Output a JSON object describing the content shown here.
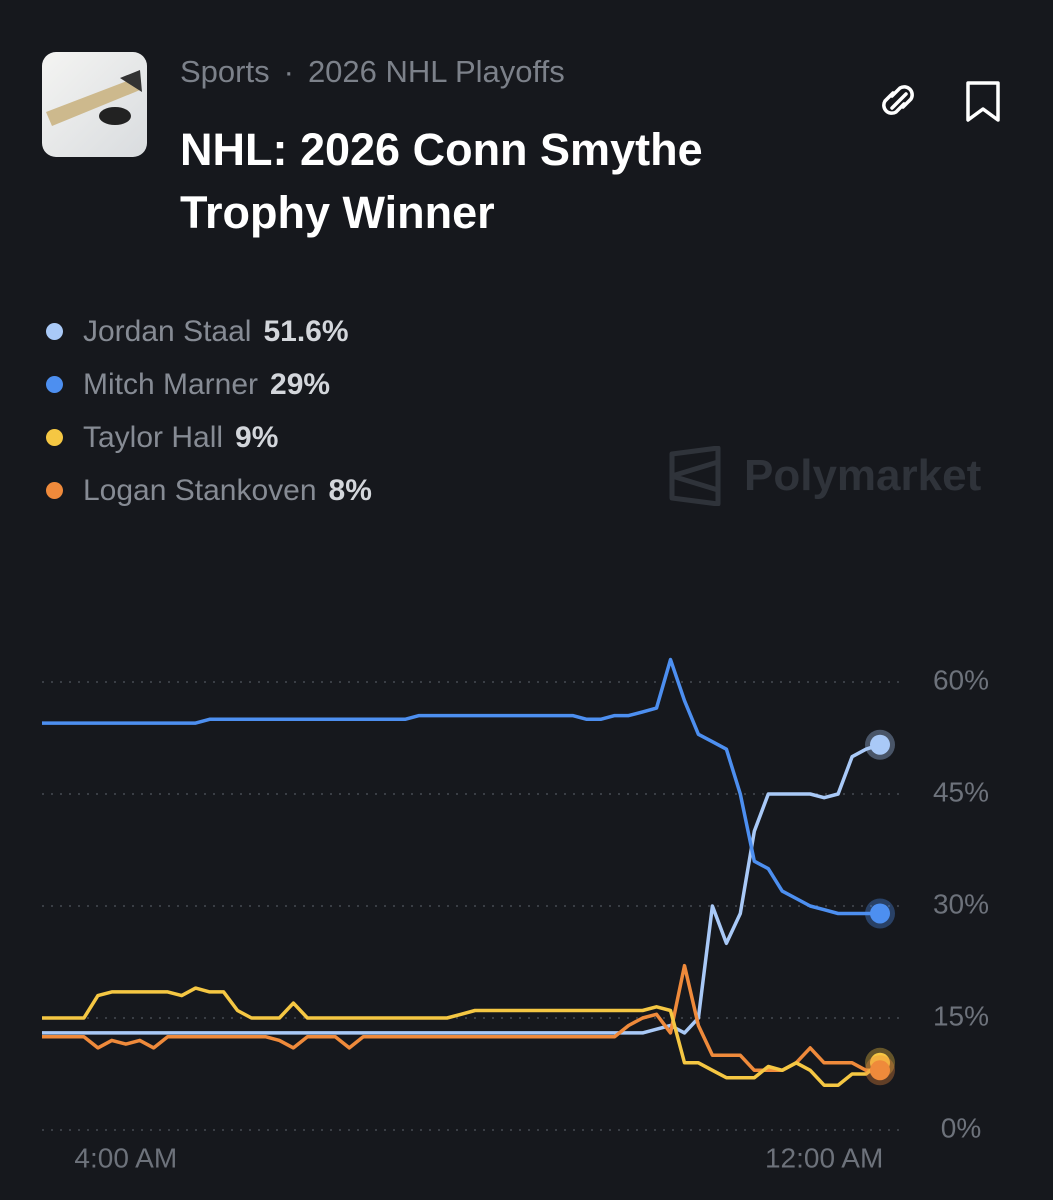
{
  "header": {
    "category": "Sports",
    "subcategory": "2026 NHL Playoffs",
    "title": "NHL: 2026 Conn Smythe Trophy Winner"
  },
  "watermark": "Polymarket",
  "chart_data": {
    "type": "line",
    "categories": [
      null,
      null,
      null,
      null,
      null,
      null,
      "4:00 AM",
      null,
      null,
      null,
      null,
      null,
      null,
      null,
      null,
      null,
      null,
      null,
      null,
      null,
      null,
      null,
      null,
      null,
      null,
      null,
      null,
      null,
      null,
      null,
      null,
      null,
      null,
      null,
      null,
      null,
      null,
      null,
      null,
      null,
      null,
      null,
      null,
      null,
      null,
      null,
      null,
      null,
      null,
      null,
      null,
      null,
      null,
      null,
      null,
      null,
      "12:00 AM",
      null,
      null,
      null,
      null
    ],
    "ylim": [
      0,
      66
    ],
    "yticks": [
      {
        "value": 0,
        "label": "0%"
      },
      {
        "value": 15,
        "label": "15%"
      },
      {
        "value": 30,
        "label": "30%"
      },
      {
        "value": 45,
        "label": "45%"
      },
      {
        "value": 60,
        "label": "60%"
      }
    ],
    "grid": true,
    "series": [
      {
        "name": "Jordan Staal",
        "label": "51.6%",
        "color": "#a9c9f7",
        "values": [
          13,
          13,
          13,
          13,
          13,
          13,
          13,
          13,
          13,
          13,
          13,
          13,
          13,
          13,
          13,
          13,
          13,
          13,
          13,
          13,
          13,
          13,
          13,
          13,
          13,
          13,
          13,
          13,
          13,
          13,
          13,
          13,
          13,
          13,
          13,
          13,
          13,
          13,
          13,
          13,
          13,
          13,
          13,
          13,
          13.5,
          14,
          13,
          15,
          30,
          25,
          29,
          40,
          45,
          45,
          45,
          45,
          44.5,
          45,
          50,
          51,
          51.6
        ]
      },
      {
        "name": "Mitch Marner",
        "label": "29%",
        "color": "#4d8ff0",
        "values": [
          54.5,
          54.5,
          54.5,
          54.5,
          54.5,
          54.5,
          54.5,
          54.5,
          54.5,
          54.5,
          54.5,
          54.5,
          55,
          55,
          55,
          55,
          55,
          55,
          55,
          55,
          55,
          55,
          55,
          55,
          55,
          55,
          55,
          55.5,
          55.5,
          55.5,
          55.5,
          55.5,
          55.5,
          55.5,
          55.5,
          55.5,
          55.5,
          55.5,
          55.5,
          55,
          55,
          55.5,
          55.5,
          56,
          56.5,
          63,
          57.5,
          53,
          52,
          51,
          45,
          36,
          35,
          32,
          31,
          30,
          29.5,
          29,
          29,
          29,
          29
        ]
      },
      {
        "name": "Taylor Hall",
        "label": "9%",
        "color": "#f5c743",
        "values": [
          15,
          15,
          15,
          15,
          18,
          18.5,
          18.5,
          18.5,
          18.5,
          18.5,
          18,
          19,
          18.5,
          18.5,
          16,
          15,
          15,
          15,
          17,
          15,
          15,
          15,
          15,
          15,
          15,
          15,
          15,
          15,
          15,
          15,
          15.5,
          16,
          16,
          16,
          16,
          16,
          16,
          16,
          16,
          16,
          16,
          16,
          16,
          16,
          16.5,
          16,
          9,
          9,
          8,
          7,
          7,
          7,
          8.5,
          8,
          9,
          8,
          6,
          6,
          7.5,
          7.5,
          9
        ]
      },
      {
        "name": "Logan Stankoven",
        "label": "8%",
        "color": "#ef8a3b",
        "values": [
          12.5,
          12.5,
          12.5,
          12.5,
          11,
          12,
          11.5,
          12,
          11,
          12.5,
          12.5,
          12.5,
          12.5,
          12.5,
          12.5,
          12.5,
          12.5,
          12,
          11,
          12.5,
          12.5,
          12.5,
          11,
          12.5,
          12.5,
          12.5,
          12.5,
          12.5,
          12.5,
          12.5,
          12.5,
          12.5,
          12.5,
          12.5,
          12.5,
          12.5,
          12.5,
          12.5,
          12.5,
          12.5,
          12.5,
          12.5,
          14,
          15,
          15.5,
          13,
          22,
          14,
          10,
          10,
          10,
          8,
          8,
          8,
          9,
          11,
          9,
          9,
          9,
          8,
          8
        ]
      }
    ]
  }
}
